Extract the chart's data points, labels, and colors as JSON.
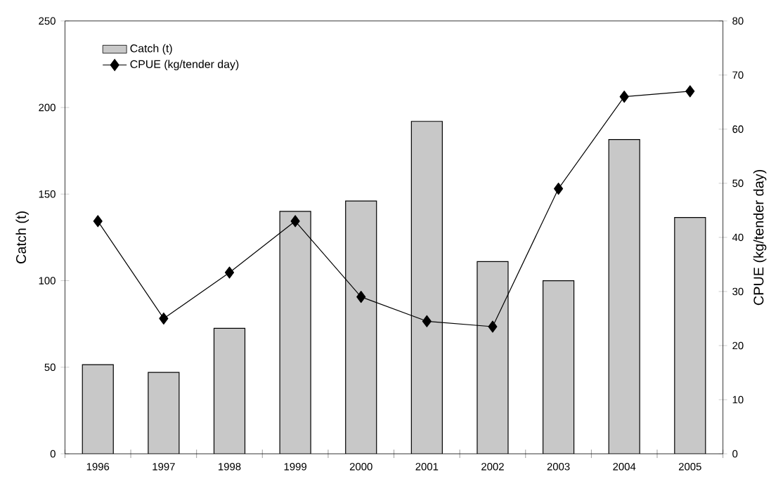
{
  "chart_data": {
    "type": "bar",
    "categories": [
      "1996",
      "1997",
      "1998",
      "1999",
      "2000",
      "2001",
      "2002",
      "2003",
      "2004",
      "2005"
    ],
    "series": [
      {
        "name": "Catch (t)",
        "color": "#c8c8c8",
        "values": [
          51.5,
          47,
          72.5,
          140,
          146,
          192,
          111,
          100,
          181.5,
          136.5
        ]
      },
      {
        "name": "CPUE (kg/tender day)",
        "type": "line",
        "axis": "y2",
        "color": "#000000",
        "marker": "diamond",
        "values": [
          43,
          25,
          33.5,
          43,
          29,
          24.5,
          23.5,
          49,
          66,
          67
        ]
      }
    ],
    "ylabel": "Catch (t)",
    "y2label": "CPUE (kg/tender day)",
    "ylim": [
      0,
      250
    ],
    "yticks": [
      0,
      50,
      100,
      150,
      200,
      250
    ],
    "y2lim": [
      0,
      80
    ],
    "y2ticks": [
      0,
      10,
      20,
      30,
      40,
      50,
      60,
      70,
      80
    ],
    "legend": "top left"
  }
}
